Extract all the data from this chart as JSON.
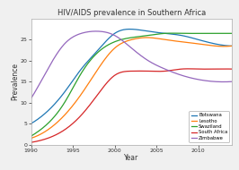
{
  "title": "HIV/AIDS prevalence in Southern Africa",
  "xlabel": "Year",
  "ylabel": "Prevalence",
  "xlim": [
    1990,
    2014
  ],
  "ylim": [
    0,
    30
  ],
  "yticks": [
    0,
    5,
    10,
    15,
    20,
    25
  ],
  "xticks": [
    1990,
    1995,
    2000,
    2005,
    2010
  ],
  "countries": [
    "Botswana",
    "Lesotho",
    "Swaziland",
    "South Africa",
    "Zimbabwe"
  ],
  "colors": [
    "#1f77b4",
    "#ff7f0e",
    "#2ca02c",
    "#d62728",
    "#9467bd"
  ],
  "curves": {
    "Botswana": {
      "x": [
        1990,
        1992,
        1994,
        1996,
        1998,
        2000,
        2002,
        2004,
        2006,
        2008,
        2010,
        2012,
        2014
      ],
      "y": [
        5.0,
        8.0,
        12.5,
        18.0,
        22.5,
        26.5,
        27.5,
        27.0,
        26.5,
        26.0,
        25.0,
        24.0,
        23.5
      ]
    },
    "Lesotho": {
      "x": [
        1990,
        1992,
        1994,
        1996,
        1998,
        2000,
        2002,
        2004,
        2006,
        2008,
        2010,
        2012,
        2014
      ],
      "y": [
        1.5,
        3.5,
        7.0,
        12.0,
        18.0,
        23.0,
        25.0,
        25.5,
        25.0,
        24.5,
        24.0,
        23.5,
        23.5
      ]
    },
    "Swaziland": {
      "x": [
        1990,
        1992,
        1994,
        1996,
        1998,
        2000,
        2002,
        2004,
        2006,
        2008,
        2010,
        2012,
        2014
      ],
      "y": [
        2.0,
        5.0,
        10.0,
        17.0,
        22.0,
        24.5,
        25.5,
        26.0,
        26.5,
        26.5,
        26.5,
        26.5,
        26.5
      ]
    },
    "South Africa": {
      "x": [
        1990,
        1992,
        1994,
        1996,
        1998,
        2000,
        2002,
        2004,
        2006,
        2008,
        2010,
        2012,
        2014
      ],
      "y": [
        0.5,
        1.5,
        3.5,
        7.0,
        12.0,
        16.5,
        17.5,
        17.5,
        17.5,
        18.0,
        18.0,
        18.0,
        18.0
      ]
    },
    "Zimbabwe": {
      "x": [
        1990,
        1992,
        1994,
        1996,
        1998,
        2000,
        2002,
        2004,
        2006,
        2008,
        2010,
        2012,
        2014
      ],
      "y": [
        11.0,
        18.0,
        24.0,
        26.5,
        27.0,
        26.0,
        23.0,
        20.0,
        18.0,
        16.5,
        15.5,
        15.0,
        15.0
      ]
    }
  },
  "bg_color": "#f0f0f0",
  "plot_bg_color": "#ffffff",
  "grid_color": "#ffffff",
  "spine_color": "#aaaaaa"
}
